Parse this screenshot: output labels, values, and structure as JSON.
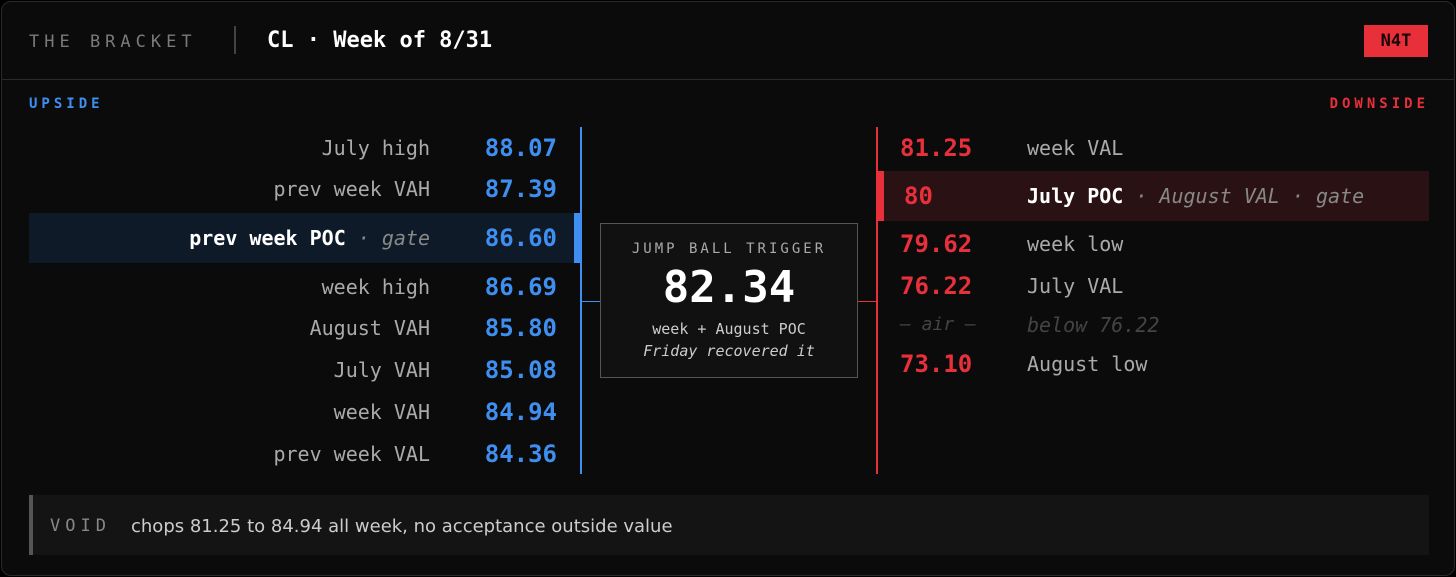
{
  "header": {
    "brand": "THE BRACKET",
    "title": "CL · Week of 8/31",
    "badge": "N4T"
  },
  "upside": {
    "label": "UPSIDE",
    "rows": [
      {
        "label": "July high",
        "price": "88.07"
      },
      {
        "label": "prev week VAH",
        "price": "87.39"
      },
      {
        "label": "prev week POC",
        "extra": "· gate",
        "price": "86.60",
        "highlight": true
      },
      {
        "label": "week high",
        "price": "86.69"
      },
      {
        "label": "August VAH",
        "price": "85.80"
      },
      {
        "label": "July VAH",
        "price": "85.08"
      },
      {
        "label": "week VAH",
        "price": "84.94"
      },
      {
        "label": "prev week VAL",
        "price": "84.36"
      }
    ]
  },
  "center": {
    "label": "JUMP BALL TRIGGER",
    "price": "82.34",
    "note": "week + August POC",
    "note2": "Friday recovered it"
  },
  "downside": {
    "label": "DOWNSIDE",
    "rows": [
      {
        "price": "81.25",
        "label": "week VAL"
      },
      {
        "price": "80",
        "label": "July POC",
        "extra": "· August VAL · gate",
        "highlight": true
      },
      {
        "price": "79.62",
        "label": "week low"
      },
      {
        "price": "76.22",
        "label": "July VAL"
      },
      {
        "price": "— air —",
        "label": "below 76.22",
        "dim": true
      },
      {
        "price": "73.10",
        "label": "August low"
      }
    ]
  },
  "footer": {
    "tag": "VOID",
    "text": "chops 81.25 to 84.94 all week, no acceptance outside value"
  }
}
